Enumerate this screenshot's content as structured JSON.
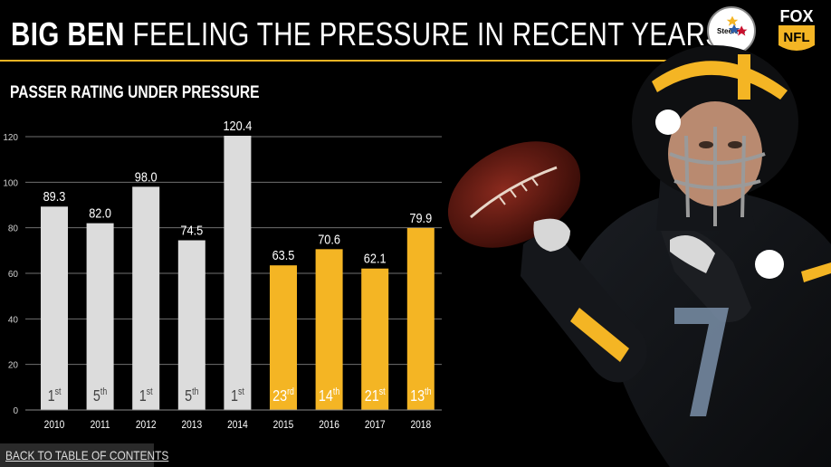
{
  "header": {
    "title_bold": "BIG BEN",
    "title_rest": "FEELING THE PRESSURE IN RECENT YEARS"
  },
  "logos": {
    "team": "Steelers",
    "network": "FOX",
    "league": "NFL"
  },
  "nav": {
    "back_label": "BACK TO TABLE OF CONTENTS"
  },
  "colors": {
    "highlight": "#F4B524",
    "default_bar": "#DCDCDC",
    "background": "#000000"
  },
  "chart_data": {
    "type": "bar",
    "title": "PASSER RATING UNDER PRESSURE",
    "categories": [
      "2010",
      "2011",
      "2012",
      "2013",
      "2014",
      "2015",
      "2016",
      "2017",
      "2018"
    ],
    "values": [
      89.3,
      82.0,
      98.0,
      74.5,
      120.4,
      63.5,
      70.6,
      62.1,
      79.9
    ],
    "value_labels": [
      "89.3",
      "82.0",
      "98.0",
      "74.5",
      "120.4",
      "63.5",
      "70.6",
      "62.1",
      "79.9"
    ],
    "ranks": [
      {
        "num": "1",
        "suffix": "st"
      },
      {
        "num": "5",
        "suffix": "th"
      },
      {
        "num": "1",
        "suffix": "st"
      },
      {
        "num": "5",
        "suffix": "th"
      },
      {
        "num": "1",
        "suffix": "st"
      },
      {
        "num": "23",
        "suffix": "rd"
      },
      {
        "num": "14",
        "suffix": "th"
      },
      {
        "num": "21",
        "suffix": "st"
      },
      {
        "num": "13",
        "suffix": "th"
      }
    ],
    "highlight": [
      false,
      false,
      false,
      false,
      false,
      true,
      true,
      true,
      true
    ],
    "ylim": [
      0,
      120
    ],
    "yticks": [
      0,
      20,
      40,
      60,
      80,
      100,
      120
    ],
    "grid": true,
    "legend": "none"
  }
}
